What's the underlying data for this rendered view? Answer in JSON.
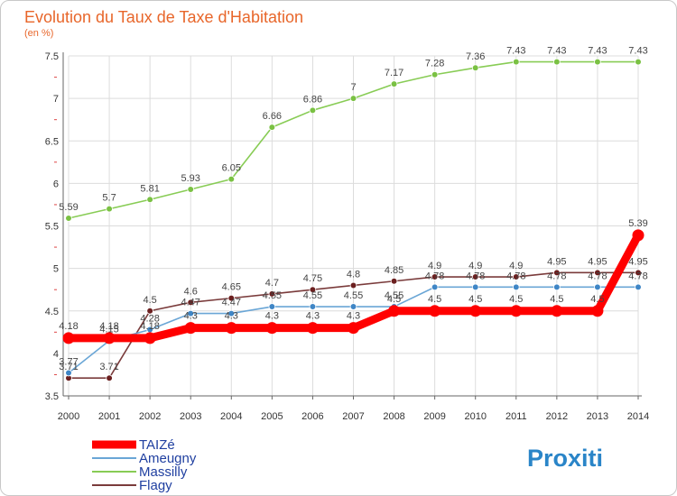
{
  "title": "Evolution du Taux de Taxe d'Habitation",
  "subtitle": "(en %)",
  "brand": "Proxiti",
  "colors": {
    "title": "#e8662a",
    "grid": "#dcdcdc",
    "axis": "#666666"
  },
  "chart_data": {
    "type": "line",
    "title": "Evolution du Taux de Taxe d'Habitation",
    "ylabel": "(en %)",
    "x": [
      "2000",
      "2001",
      "2002",
      "2003",
      "2004",
      "2005",
      "2006",
      "2007",
      "2008",
      "2009",
      "2010",
      "2011",
      "2012",
      "2013",
      "2014"
    ],
    "ylim": [
      3.5,
      7.5
    ],
    "yticks": [
      "3.5",
      "4",
      "4.5",
      "5",
      "5.5",
      "6",
      "6.5",
      "7",
      "7.5"
    ],
    "grid": true,
    "legend": "bottom-left",
    "series": [
      {
        "name": "Massilly",
        "color": "#88cc55",
        "marker": "#7ac143",
        "values": [
          5.59,
          5.7,
          5.81,
          5.93,
          6.05,
          6.66,
          6.86,
          7,
          7.17,
          7.28,
          7.36,
          7.43,
          7.43,
          7.43,
          7.43
        ],
        "labels": [
          "5.59",
          "5.7",
          "5.81",
          "5.93",
          "6.05",
          "6.66",
          "6.86",
          "7",
          "7.17",
          "7.28",
          "7.36",
          "7.43",
          "7.43",
          "7.43",
          "7.43"
        ]
      },
      {
        "name": "Flagy",
        "color": "#7a3b3b",
        "marker": "#6b1f1f",
        "values": [
          3.71,
          3.71,
          4.5,
          4.6,
          4.65,
          4.7,
          4.75,
          4.8,
          4.85,
          4.9,
          4.9,
          4.9,
          4.95,
          4.95,
          4.95
        ],
        "labels": [
          "3.71",
          "3.71",
          "4.5",
          "4.6",
          "4.65",
          "4.7",
          "4.75",
          "4.8",
          "4.85",
          "4.9",
          "4.9",
          "4.9",
          "4.95",
          "4.95",
          "4.95"
        ]
      },
      {
        "name": "Ameugny",
        "color": "#6aa6d6",
        "marker": "#3f86c6",
        "values": [
          3.77,
          4.15,
          4.28,
          4.47,
          4.47,
          4.55,
          4.55,
          4.55,
          4.55,
          4.78,
          4.78,
          4.78,
          4.78,
          4.78,
          4.78
        ],
        "labels": [
          "3.77",
          "4.15",
          "4.28",
          "4.47",
          "4.47",
          "4.55",
          "4.55",
          "4.55",
          "4.55",
          "4.78",
          "4.78",
          "4.78",
          "4.78",
          "4.78",
          "4.78"
        ]
      },
      {
        "name": "TAIZé",
        "color": "#ff0000",
        "marker": "#ff0000",
        "values": [
          4.18,
          4.18,
          4.18,
          4.3,
          4.3,
          4.3,
          4.3,
          4.3,
          4.5,
          4.5,
          4.5,
          4.5,
          4.5,
          4.5,
          5.39
        ],
        "labels": [
          "4.18",
          "4.18",
          "4.18",
          "4.3",
          "4.3",
          "4.3",
          "4.3",
          "4.3",
          "4.5",
          "4.5",
          "4.5",
          "4.5",
          "4.5",
          "4.5",
          "5.39"
        ]
      }
    ]
  }
}
